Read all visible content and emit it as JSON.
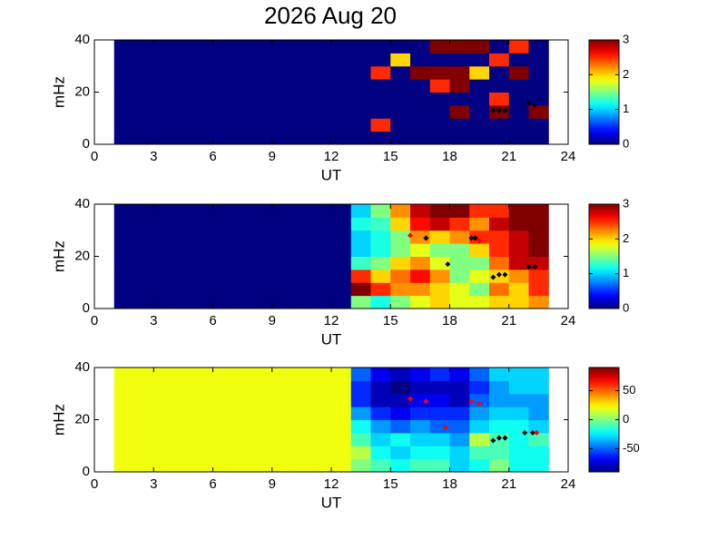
{
  "chart_data": [
    {
      "type": "heatmap",
      "title": "2026 Aug 20",
      "xlabel": "UT",
      "ylabel": "mHz",
      "xlim": [
        0,
        24
      ],
      "xticks": [
        0,
        3,
        6,
        9,
        12,
        15,
        18,
        21,
        24
      ],
      "ylim": [
        0,
        40
      ],
      "yticks": [
        0,
        20,
        40
      ],
      "colormap": "jet",
      "clim": [
        0,
        3
      ],
      "cticks": [
        0,
        1,
        2,
        3
      ],
      "x_edges": [
        1,
        2,
        3,
        4,
        5,
        6,
        7,
        8,
        9,
        10,
        11,
        12,
        13,
        14,
        15,
        16,
        17,
        18,
        19,
        20,
        21,
        22,
        23
      ],
      "y_edges": [
        0,
        5,
        10,
        15,
        20,
        25,
        30,
        35,
        40
      ],
      "z": [
        [
          0,
          0,
          0,
          0,
          0,
          0,
          0,
          0,
          0,
          0,
          0,
          0,
          0,
          0,
          0,
          0,
          0,
          0,
          0,
          0,
          0,
          0
        ],
        [
          0,
          0,
          0,
          0,
          0,
          0,
          0,
          0,
          0,
          0,
          0,
          0,
          0,
          2.5,
          0,
          0,
          0,
          0,
          0,
          0,
          0,
          0
        ],
        [
          0,
          0,
          0,
          0,
          0,
          0,
          0,
          0,
          0,
          0,
          0,
          0,
          0,
          0,
          0,
          0,
          0,
          3,
          0,
          3,
          0,
          3
        ],
        [
          0,
          0,
          0,
          0,
          0,
          0,
          0,
          0,
          0,
          0,
          0,
          0,
          0,
          0,
          0,
          0,
          0,
          0,
          0,
          2.5,
          0,
          0
        ],
        [
          0,
          0,
          0,
          0,
          0,
          0,
          0,
          0,
          0,
          0,
          0,
          0,
          0,
          0,
          0,
          0,
          2.5,
          3,
          0,
          0,
          0,
          0
        ],
        [
          0,
          0,
          0,
          0,
          0,
          0,
          0,
          0,
          0,
          0,
          0,
          0,
          0,
          2.5,
          0,
          3,
          3,
          3,
          2,
          0,
          3,
          0
        ],
        [
          0,
          0,
          0,
          0,
          0,
          0,
          0,
          0,
          0,
          0,
          0,
          0,
          0,
          0,
          2,
          0,
          0,
          0,
          0,
          2.5,
          0,
          0
        ],
        [
          0,
          0,
          0,
          0,
          0,
          0,
          0,
          0,
          0,
          0,
          0,
          0,
          0,
          0,
          0,
          0,
          3,
          3,
          3,
          0,
          2.5,
          0
        ]
      ],
      "markers": [
        {
          "color": "#000000",
          "x": [
            20.2,
            20.5,
            20.8,
            22.0,
            22.3
          ],
          "y": [
            13,
            13,
            13,
            16,
            15
          ]
        }
      ]
    },
    {
      "type": "heatmap",
      "xlabel": "UT",
      "ylabel": "mHz",
      "xlim": [
        0,
        24
      ],
      "xticks": [
        0,
        3,
        6,
        9,
        12,
        15,
        18,
        21,
        24
      ],
      "ylim": [
        0,
        40
      ],
      "yticks": [
        0,
        20,
        40
      ],
      "colormap": "jet",
      "clim": [
        0,
        3
      ],
      "cticks": [
        0,
        1,
        2,
        3
      ],
      "x_edges": [
        1,
        2,
        3,
        4,
        5,
        6,
        7,
        8,
        9,
        10,
        11,
        12,
        13,
        14,
        15,
        16,
        17,
        18,
        19,
        20,
        21,
        22,
        23
      ],
      "y_edges": [
        0,
        5,
        10,
        15,
        20,
        25,
        30,
        35,
        40
      ],
      "z": [
        [
          0,
          0,
          0,
          0,
          0,
          0,
          0,
          0,
          0,
          0,
          0,
          0,
          1.5,
          1.2,
          1.5,
          1.8,
          2,
          1.8,
          1.8,
          2,
          2,
          2.2
        ],
        [
          0,
          0,
          0,
          0,
          0,
          0,
          0,
          0,
          0,
          0,
          0,
          0,
          3,
          2.5,
          2.2,
          2.2,
          2,
          1.8,
          1.5,
          2.3,
          2,
          2.5
        ],
        [
          0,
          0,
          0,
          0,
          0,
          0,
          0,
          0,
          0,
          0,
          0,
          0,
          2.5,
          2,
          2.3,
          2.6,
          2.2,
          1.5,
          1.8,
          2,
          2.2,
          2.5
        ],
        [
          0,
          0,
          0,
          0,
          0,
          0,
          0,
          0,
          0,
          0,
          0,
          0,
          1.3,
          1.5,
          2,
          2.2,
          1.8,
          1.5,
          1.5,
          2.3,
          2.8,
          2.8
        ],
        [
          0,
          0,
          0,
          0,
          0,
          0,
          0,
          0,
          0,
          0,
          0,
          0,
          1,
          1.2,
          1.5,
          1.8,
          1.5,
          1.5,
          2,
          2.5,
          2.8,
          3
        ],
        [
          0,
          0,
          0,
          0,
          0,
          0,
          0,
          0,
          0,
          0,
          0,
          0,
          1,
          1.2,
          1.5,
          2.2,
          2,
          2.2,
          2.5,
          2.5,
          2.8,
          3
        ],
        [
          0,
          0,
          0,
          0,
          0,
          0,
          0,
          0,
          0,
          0,
          0,
          0,
          1.2,
          1.3,
          2,
          2.6,
          2.8,
          2.5,
          2.2,
          2.8,
          3,
          3
        ],
        [
          0,
          0,
          0,
          0,
          0,
          0,
          0,
          0,
          0,
          0,
          0,
          0,
          1,
          1.5,
          2.2,
          2.8,
          3,
          3,
          2.5,
          2.5,
          3,
          3
        ]
      ],
      "markers": [
        {
          "color": "#000000",
          "x": [
            16.8,
            17.9,
            19.1,
            19.3,
            20.2,
            20.5,
            20.8,
            22.0,
            22.3
          ],
          "y": [
            27,
            17,
            27,
            27,
            12,
            13,
            13,
            16,
            16
          ]
        },
        {
          "color": "#ff0000",
          "x": [
            16.0,
            19.5
          ],
          "y": [
            28,
            26
          ]
        }
      ]
    },
    {
      "type": "heatmap",
      "xlabel": "UT",
      "ylabel": "mHz",
      "xlim": [
        0,
        24
      ],
      "xticks": [
        0,
        3,
        6,
        9,
        12,
        15,
        18,
        21,
        24
      ],
      "ylim": [
        0,
        40
      ],
      "yticks": [
        0,
        20,
        40
      ],
      "colormap": "jet",
      "clim": [
        -90,
        90
      ],
      "cticks": [
        -50,
        0,
        50
      ],
      "x_edges": [
        1,
        2,
        3,
        4,
        5,
        6,
        7,
        8,
        9,
        10,
        11,
        12,
        13,
        14,
        15,
        16,
        17,
        18,
        19,
        20,
        21,
        22,
        23
      ],
      "y_edges": [
        0,
        5,
        10,
        15,
        20,
        25,
        30,
        35,
        40
      ],
      "z": [
        [
          20,
          20,
          20,
          20,
          20,
          20,
          20,
          20,
          20,
          20,
          20,
          20,
          0,
          -10,
          -20,
          -10,
          -10,
          -30,
          -20,
          0,
          -20,
          -20
        ],
        [
          20,
          20,
          20,
          20,
          20,
          20,
          20,
          20,
          20,
          20,
          20,
          20,
          10,
          -20,
          -30,
          -20,
          -20,
          -30,
          -10,
          -10,
          -20,
          -20
        ],
        [
          20,
          20,
          20,
          20,
          20,
          20,
          20,
          20,
          20,
          20,
          20,
          20,
          -10,
          -30,
          -20,
          -30,
          -30,
          -40,
          10,
          -10,
          -20,
          -10
        ],
        [
          20,
          20,
          20,
          20,
          20,
          20,
          20,
          20,
          20,
          20,
          20,
          20,
          -20,
          -40,
          -50,
          -40,
          -50,
          -50,
          -30,
          -20,
          -20,
          -30
        ],
        [
          20,
          20,
          20,
          20,
          20,
          20,
          20,
          20,
          20,
          20,
          20,
          20,
          -40,
          -60,
          -70,
          -60,
          -60,
          -60,
          -40,
          -30,
          -30,
          -40
        ],
        [
          20,
          20,
          20,
          20,
          20,
          20,
          20,
          20,
          20,
          20,
          20,
          20,
          -60,
          -80,
          -80,
          -70,
          -70,
          -80,
          -50,
          -40,
          -40,
          -40
        ],
        [
          20,
          20,
          20,
          20,
          20,
          20,
          20,
          20,
          20,
          20,
          20,
          20,
          -60,
          -80,
          -90,
          -80,
          -80,
          -80,
          -60,
          -40,
          -30,
          -30
        ],
        [
          20,
          20,
          20,
          20,
          20,
          20,
          20,
          20,
          20,
          20,
          20,
          20,
          -50,
          -70,
          -80,
          -70,
          -60,
          -70,
          -50,
          -30,
          -30,
          -30
        ]
      ],
      "markers": [
        {
          "color": "#000000",
          "x": [
            20.2,
            20.5,
            20.8,
            21.8,
            22.2
          ],
          "y": [
            12,
            13,
            13,
            15,
            15
          ]
        },
        {
          "color": "#ff0000",
          "x": [
            16.0,
            16.8,
            17.8,
            19.1,
            19.5,
            22.4
          ],
          "y": [
            28,
            27,
            17,
            27,
            26,
            15
          ]
        }
      ]
    }
  ]
}
